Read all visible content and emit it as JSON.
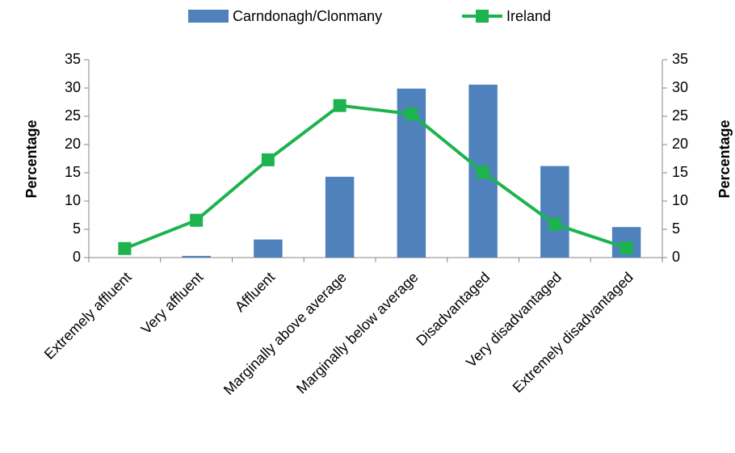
{
  "chart_data": {
    "type": "bar_line",
    "categories": [
      "Extremely affluent",
      "Very affluent",
      "Affluent",
      "Marginally above average",
      "Marginally below average",
      "Disadvantaged",
      "Very disadvantaged",
      "Extremely disadvantaged"
    ],
    "series": [
      {
        "name": "Carndonagh/Clonmany",
        "type": "bar",
        "color": "#4f81bd",
        "values": [
          0,
          0.3,
          3.2,
          14.3,
          29.9,
          30.6,
          16.2,
          5.4
        ]
      },
      {
        "name": "Ireland",
        "type": "line",
        "axis": "y2",
        "color": "#1db34f",
        "values": [
          1.6,
          6.6,
          17.3,
          26.9,
          25.4,
          15.1,
          5.9,
          1.7
        ]
      }
    ],
    "ylabel": "Percentage",
    "y2label": "Percentage",
    "ylim": [
      0,
      35
    ],
    "yticks": [
      0,
      5,
      10,
      15,
      20,
      25,
      30,
      35
    ],
    "y2lim": [
      0,
      35
    ],
    "y2ticks": [
      0,
      5,
      10,
      15,
      20,
      25,
      30,
      35
    ],
    "grid": false,
    "legend": "top"
  }
}
